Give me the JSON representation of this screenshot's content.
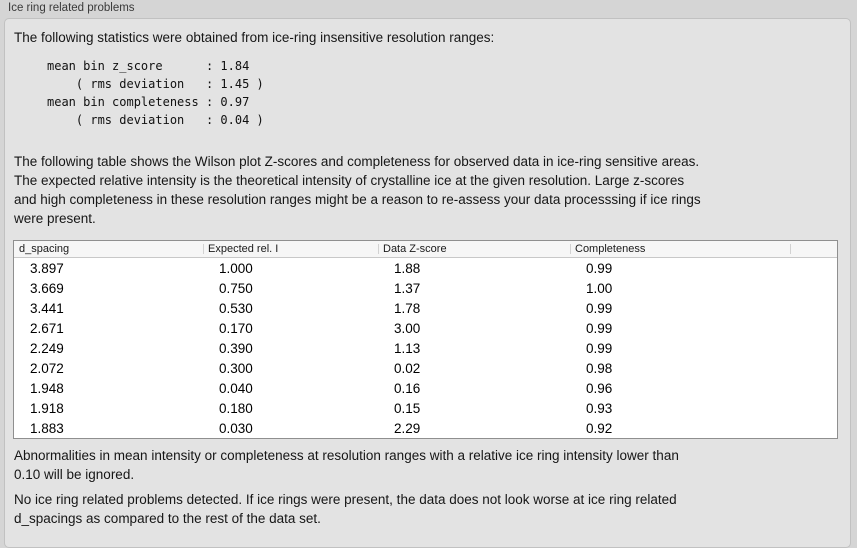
{
  "panel": {
    "title": "Ice ring related problems",
    "intro": "The following statistics were obtained from ice-ring insensitive resolution ranges:",
    "stats_block": "mean bin z_score      : 1.84\n    ( rms deviation   : 1.45 )\nmean bin completeness : 0.97\n    ( rms deviation   : 0.04 )",
    "table_intro": "The following table shows the Wilson plot Z-scores and completeness for observed data in ice-ring sensitive areas.\nThe expected relative intensity is the theoretical intensity of crystalline ice at the given resolution. Large z-scores\nand high completeness in these resolution ranges might be a reason to re-assess your data processsing if ice rings\nwere present.",
    "note_ignore": "Abnormalities in mean intensity or completeness at resolution ranges with a relative ice ring intensity lower than\n0.10 will be ignored.",
    "note_result": "No ice ring related problems detected. If ice rings were present, the data does not look worse at ice ring related\nd_spacings as compared to the rest of the data set."
  },
  "table": {
    "columns": [
      "d_spacing",
      "Expected rel. I",
      "Data Z-score",
      "Completeness",
      ""
    ],
    "rows": [
      [
        "3.897",
        "1.000",
        "1.88",
        "0.99"
      ],
      [
        "3.669",
        "0.750",
        "1.37",
        "1.00"
      ],
      [
        "3.441",
        "0.530",
        "1.78",
        "0.99"
      ],
      [
        "2.671",
        "0.170",
        "3.00",
        "0.99"
      ],
      [
        "2.249",
        "0.390",
        "1.13",
        "0.99"
      ],
      [
        "2.072",
        "0.300",
        "0.02",
        "0.98"
      ],
      [
        "1.948",
        "0.040",
        "0.16",
        "0.96"
      ],
      [
        "1.918",
        "0.180",
        "0.15",
        "0.93"
      ],
      [
        "1.883",
        "0.030",
        "2.29",
        "0.92"
      ]
    ]
  },
  "colors": {
    "page_bg": "#d5d5d5",
    "panel_bg": "#e3e3e3",
    "table_border": "#8f8f8f",
    "header_bg": "#f6f6f6"
  }
}
